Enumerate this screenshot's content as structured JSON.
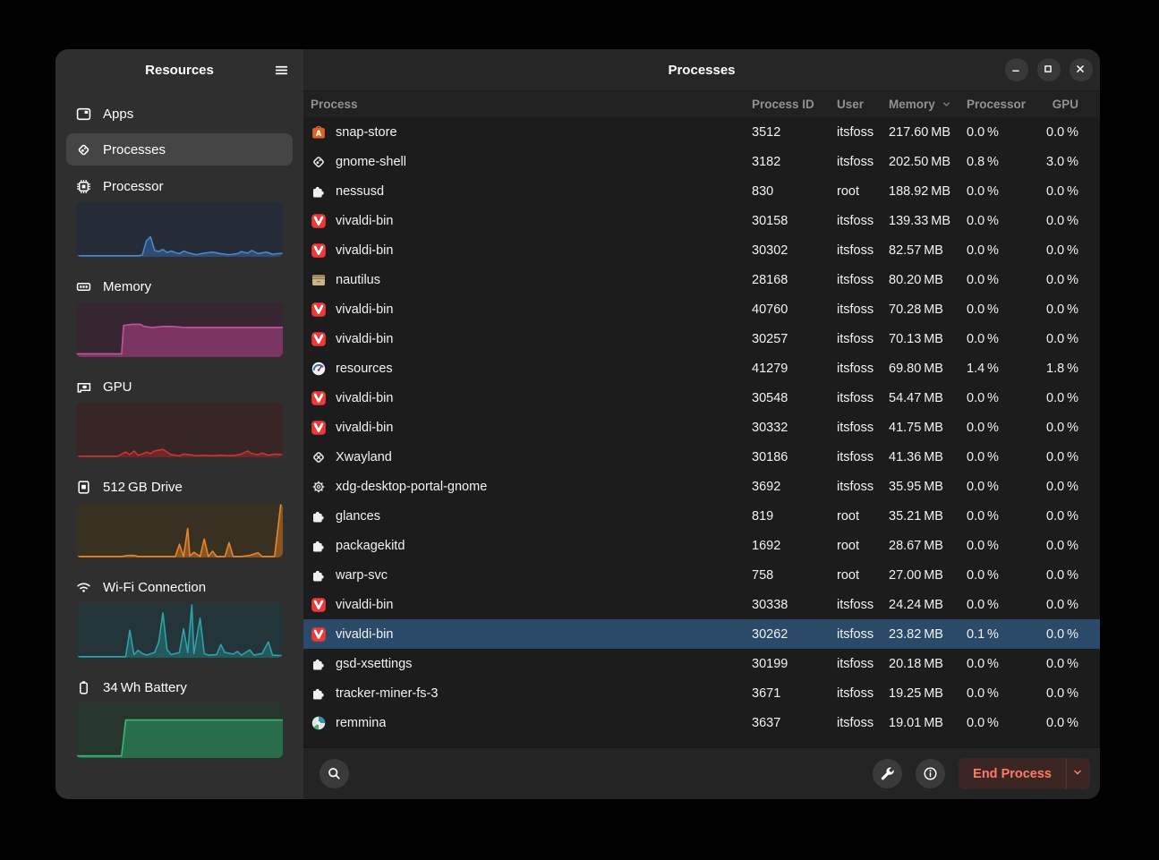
{
  "sidebar": {
    "title": "Resources",
    "items": [
      {
        "label": "Apps",
        "icon": "apps"
      },
      {
        "label": "Processes",
        "icon": "diamond",
        "selected": true
      },
      {
        "label": "Processor",
        "icon": "processor",
        "graph": {
          "line": "#4a86c8",
          "fill": "rgba(53,102,160,0.55)",
          "bg": "#262c37",
          "points": [
            [
              0,
              0.02
            ],
            [
              30,
              0.02
            ],
            [
              32,
              0.03
            ],
            [
              34,
              0.3
            ],
            [
              36,
              0.38
            ],
            [
              38,
              0.12
            ],
            [
              40,
              0.1
            ],
            [
              42,
              0.14
            ],
            [
              44,
              0.08
            ],
            [
              46,
              0.11
            ],
            [
              48,
              0.08
            ],
            [
              50,
              0.06
            ],
            [
              52,
              0.11
            ],
            [
              54,
              0.08
            ],
            [
              58,
              0.04
            ],
            [
              62,
              0.07
            ],
            [
              66,
              0.09
            ],
            [
              70,
              0.06
            ],
            [
              74,
              0.04
            ],
            [
              78,
              0.06
            ],
            [
              80,
              0.1
            ],
            [
              83,
              0.07
            ],
            [
              85,
              0.12
            ],
            [
              88,
              0.06
            ],
            [
              92,
              0.09
            ],
            [
              95,
              0.05
            ],
            [
              100,
              0.07
            ]
          ]
        }
      },
      {
        "label": "Memory",
        "icon": "memory",
        "graph": {
          "line": "#c0559c",
          "fill": "rgba(140,58,113,0.8)",
          "bg": "#362631",
          "points": [
            [
              0,
              0.06
            ],
            [
              22,
              0.06
            ],
            [
              23,
              0.6
            ],
            [
              27,
              0.62
            ],
            [
              31,
              0.62
            ],
            [
              33,
              0.58
            ],
            [
              37,
              0.56
            ],
            [
              42,
              0.58
            ],
            [
              47,
              0.58
            ],
            [
              52,
              0.56
            ],
            [
              100,
              0.56
            ]
          ]
        }
      },
      {
        "label": "GPU",
        "icon": "gpu",
        "graph": {
          "line": "#c03838",
          "fill": "rgba(150,40,40,0.6)",
          "bg": "#382525",
          "points": [
            [
              0,
              0.02
            ],
            [
              20,
              0.02
            ],
            [
              24,
              0.1
            ],
            [
              26,
              0.05
            ],
            [
              28,
              0.12
            ],
            [
              30,
              0.04
            ],
            [
              32,
              0.06
            ],
            [
              34,
              0.1
            ],
            [
              36,
              0.07
            ],
            [
              38,
              0.12
            ],
            [
              42,
              0.15
            ],
            [
              44,
              0.1
            ],
            [
              46,
              0.05
            ],
            [
              50,
              0.03
            ],
            [
              52,
              0.06
            ],
            [
              55,
              0.05
            ],
            [
              58,
              0.03
            ],
            [
              62,
              0.04
            ],
            [
              66,
              0.03
            ],
            [
              70,
              0.04
            ],
            [
              76,
              0.03
            ],
            [
              80,
              0.06
            ],
            [
              83,
              0.12
            ],
            [
              85,
              0.07
            ],
            [
              88,
              0.05
            ],
            [
              90,
              0.08
            ],
            [
              93,
              0.04
            ],
            [
              96,
              0.06
            ],
            [
              100,
              0.05
            ]
          ]
        }
      },
      {
        "label": "512 GB Drive",
        "icon": "drive",
        "graph": {
          "line": "#e5862c",
          "fill": "rgba(190,110,35,0.6)",
          "bg": "#383021",
          "points": [
            [
              0,
              0.02
            ],
            [
              22,
              0.02
            ],
            [
              25,
              0.04
            ],
            [
              28,
              0.04
            ],
            [
              30,
              0.02
            ],
            [
              48,
              0.02
            ],
            [
              50,
              0.25
            ],
            [
              52,
              0.02
            ],
            [
              54,
              0.55
            ],
            [
              55,
              0.03
            ],
            [
              57,
              0.1
            ],
            [
              60,
              0.02
            ],
            [
              62,
              0.35
            ],
            [
              64,
              0.02
            ],
            [
              66,
              0.12
            ],
            [
              68,
              0.02
            ],
            [
              72,
              0.02
            ],
            [
              74,
              0.28
            ],
            [
              76,
              0.02
            ],
            [
              80,
              0.02
            ],
            [
              84,
              0.04
            ],
            [
              88,
              0.09
            ],
            [
              90,
              0.02
            ],
            [
              96,
              0.02
            ],
            [
              99,
              1.0
            ],
            [
              100,
              1.0
            ]
          ]
        }
      },
      {
        "label": "Wi-Fi Connection",
        "icon": "wifi",
        "graph": {
          "line": "#2fa0a8",
          "fill": "rgba(35,115,120,0.6)",
          "bg": "#243539",
          "points": [
            [
              0,
              0.02
            ],
            [
              24,
              0.02
            ],
            [
              26,
              0.52
            ],
            [
              28,
              0.06
            ],
            [
              30,
              0.14
            ],
            [
              32,
              0.08
            ],
            [
              34,
              0.05
            ],
            [
              38,
              0.1
            ],
            [
              40,
              0.3
            ],
            [
              42,
              0.85
            ],
            [
              44,
              0.15
            ],
            [
              46,
              0.06
            ],
            [
              50,
              0.1
            ],
            [
              52,
              0.55
            ],
            [
              54,
              0.1
            ],
            [
              56,
              1.0
            ],
            [
              57,
              0.08
            ],
            [
              60,
              0.75
            ],
            [
              62,
              0.08
            ],
            [
              64,
              0.05
            ],
            [
              68,
              0.06
            ],
            [
              70,
              0.25
            ],
            [
              72,
              0.1
            ],
            [
              76,
              0.07
            ],
            [
              78,
              0.12
            ],
            [
              80,
              0.05
            ],
            [
              84,
              0.15
            ],
            [
              86,
              0.05
            ],
            [
              90,
              0.08
            ],
            [
              93,
              0.3
            ],
            [
              95,
              0.05
            ],
            [
              100,
              0.04
            ]
          ]
        }
      },
      {
        "label": "34 Wh Battery",
        "icon": "battery",
        "graph": {
          "line": "#35b877",
          "fill": "rgba(42,130,86,0.75)",
          "bg": "#27362c",
          "points": [
            [
              0,
              0.04
            ],
            [
              22,
              0.04
            ],
            [
              24,
              0.72
            ],
            [
              100,
              0.72
            ]
          ]
        }
      }
    ]
  },
  "header": {
    "title": "Processes",
    "controls": [
      "minimize",
      "maximize",
      "close"
    ]
  },
  "table": {
    "columns": {
      "process": "Process",
      "pid": "Process ID",
      "user": "User",
      "memory": "Memory",
      "processor": "Processor",
      "gpu": "GPU"
    },
    "sort_column": "Memory",
    "rows": [
      {
        "name": "snap-store",
        "icon": "snapstore",
        "pid": "3512",
        "user": "itsfoss",
        "memory": "217.60 MB",
        "cpu": "0.0 %",
        "gpu": "0.0 %"
      },
      {
        "name": "gnome-shell",
        "icon": "gnome",
        "pid": "3182",
        "user": "itsfoss",
        "memory": "202.50 MB",
        "cpu": "0.8 %",
        "gpu": "3.0 %"
      },
      {
        "name": "nessusd",
        "icon": "puzzle",
        "pid": "830",
        "user": "root",
        "memory": "188.92 MB",
        "cpu": "0.0 %",
        "gpu": "0.0 %"
      },
      {
        "name": "vivaldi-bin",
        "icon": "vivaldi",
        "pid": "30158",
        "user": "itsfoss",
        "memory": "139.33 MB",
        "cpu": "0.0 %",
        "gpu": "0.0 %"
      },
      {
        "name": "vivaldi-bin",
        "icon": "vivaldi",
        "pid": "30302",
        "user": "itsfoss",
        "memory": "82.57 MB",
        "cpu": "0.0 %",
        "gpu": "0.0 %"
      },
      {
        "name": "nautilus",
        "icon": "nautilus",
        "pid": "28168",
        "user": "itsfoss",
        "memory": "80.20 MB",
        "cpu": "0.0 %",
        "gpu": "0.0 %"
      },
      {
        "name": "vivaldi-bin",
        "icon": "vivaldi",
        "pid": "40760",
        "user": "itsfoss",
        "memory": "70.28 MB",
        "cpu": "0.0 %",
        "gpu": "0.0 %"
      },
      {
        "name": "vivaldi-bin",
        "icon": "vivaldi",
        "pid": "30257",
        "user": "itsfoss",
        "memory": "70.13 MB",
        "cpu": "0.0 %",
        "gpu": "0.0 %"
      },
      {
        "name": "resources",
        "icon": "gauge",
        "pid": "41279",
        "user": "itsfoss",
        "memory": "69.80 MB",
        "cpu": "1.4 %",
        "gpu": "1.8 %"
      },
      {
        "name": "vivaldi-bin",
        "icon": "vivaldi",
        "pid": "30548",
        "user": "itsfoss",
        "memory": "54.47 MB",
        "cpu": "0.0 %",
        "gpu": "0.0 %"
      },
      {
        "name": "vivaldi-bin",
        "icon": "vivaldi",
        "pid": "30332",
        "user": "itsfoss",
        "memory": "41.75 MB",
        "cpu": "0.0 %",
        "gpu": "0.0 %"
      },
      {
        "name": "Xwayland",
        "icon": "xwayland",
        "pid": "30186",
        "user": "itsfoss",
        "memory": "41.36 MB",
        "cpu": "0.0 %",
        "gpu": "0.0 %"
      },
      {
        "name": "xdg-desktop-portal-gnome",
        "icon": "gear",
        "pid": "3692",
        "user": "itsfoss",
        "memory": "35.95 MB",
        "cpu": "0.0 %",
        "gpu": "0.0 %"
      },
      {
        "name": "glances",
        "icon": "puzzle",
        "pid": "819",
        "user": "root",
        "memory": "35.21 MB",
        "cpu": "0.0 %",
        "gpu": "0.0 %"
      },
      {
        "name": "packagekitd",
        "icon": "puzzle",
        "pid": "1692",
        "user": "root",
        "memory": "28.67 MB",
        "cpu": "0.0 %",
        "gpu": "0.0 %"
      },
      {
        "name": "warp-svc",
        "icon": "puzzle",
        "pid": "758",
        "user": "root",
        "memory": "27.00 MB",
        "cpu": "0.0 %",
        "gpu": "0.0 %"
      },
      {
        "name": "vivaldi-bin",
        "icon": "vivaldi",
        "pid": "30338",
        "user": "itsfoss",
        "memory": "24.24 MB",
        "cpu": "0.0 %",
        "gpu": "0.0 %"
      },
      {
        "name": "vivaldi-bin",
        "icon": "vivaldi",
        "pid": "30262",
        "user": "itsfoss",
        "memory": "23.82 MB",
        "cpu": "0.1 %",
        "gpu": "0.0 %",
        "selected": true
      },
      {
        "name": "gsd-xsettings",
        "icon": "puzzle",
        "pid": "30199",
        "user": "itsfoss",
        "memory": "20.18 MB",
        "cpu": "0.0 %",
        "gpu": "0.0 %"
      },
      {
        "name": "tracker-miner-fs-3",
        "icon": "puzzle",
        "pid": "3671",
        "user": "itsfoss",
        "memory": "19.25 MB",
        "cpu": "0.0 %",
        "gpu": "0.0 %"
      },
      {
        "name": "remmina",
        "icon": "remmina",
        "pid": "3637",
        "user": "itsfoss",
        "memory": "19.01 MB",
        "cpu": "0.0 %",
        "gpu": "0.0 %"
      }
    ]
  },
  "footer": {
    "end_process_label": "End Process"
  },
  "colors": {
    "selected_row": "#2b4968",
    "end_process_bg": "#3c2624",
    "end_process_text": "#ff7b63",
    "vivaldi_red": "#ef3939",
    "snap_orange": "#e0621e"
  }
}
